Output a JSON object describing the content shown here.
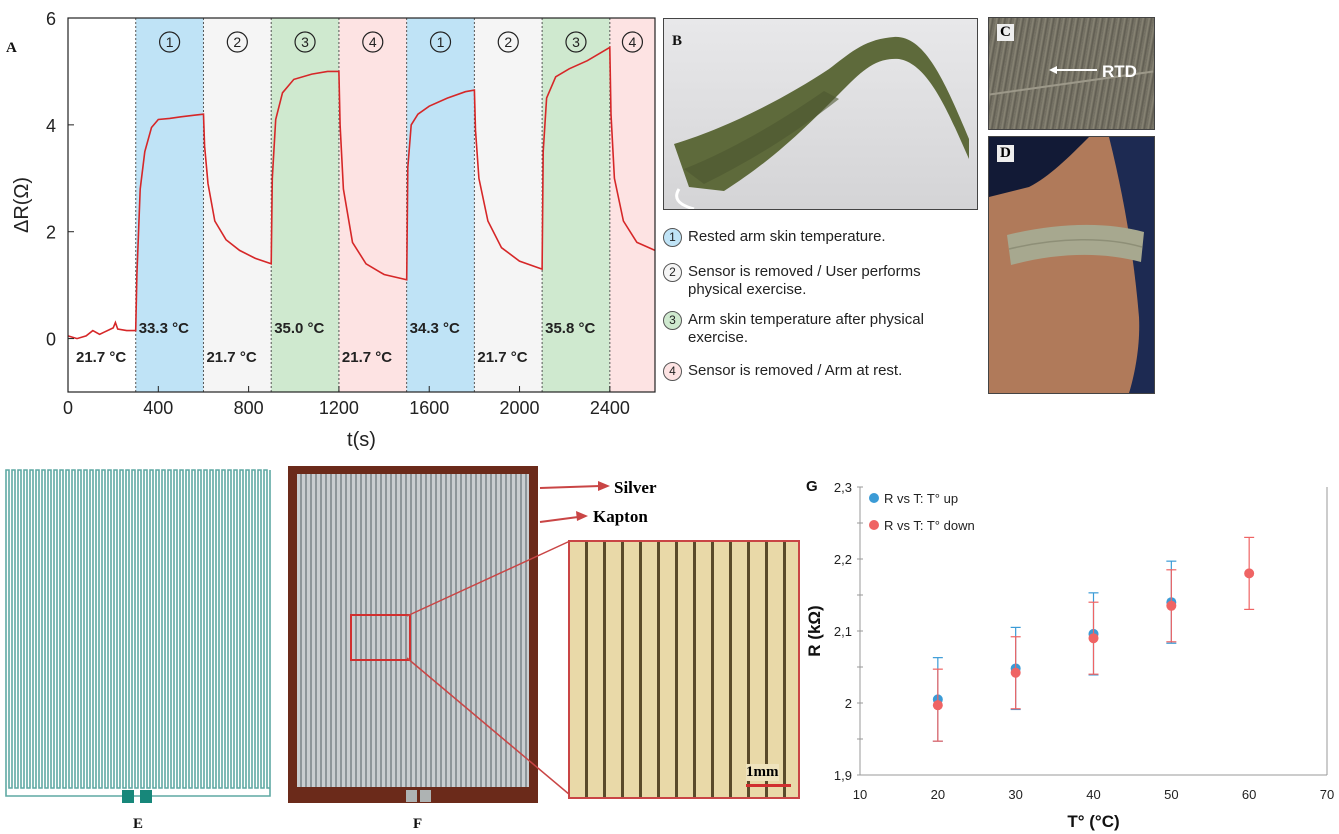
{
  "panels": {
    "a": "A",
    "b": "B",
    "c": "C",
    "d": "D",
    "e": "E",
    "f": "F",
    "g": "G"
  },
  "chart_data": [
    {
      "type": "line",
      "panel": "A",
      "xlabel": "t(s)",
      "ylabel": "ΔR(Ω)",
      "xlim": [
        0,
        2600
      ],
      "ylim": [
        -1,
        6
      ],
      "xticks": [
        "0",
        "400",
        "800",
        "1200",
        "1600",
        "2000",
        "2400"
      ],
      "yticks": [
        "0",
        "2",
        "4",
        "6"
      ],
      "phases": [
        {
          "label": "1",
          "start": 300,
          "end": 600,
          "color": "#bfe3f6",
          "temp": "33.3 °C"
        },
        {
          "label": "2",
          "start": 600,
          "end": 900,
          "color": "#f5f5f5",
          "temp": "21.7 °C"
        },
        {
          "label": "3",
          "start": 900,
          "end": 1200,
          "color": "#cfe9cf",
          "temp": "35.0 °C"
        },
        {
          "label": "4",
          "start": 1200,
          "end": 1500,
          "color": "#fde3e3",
          "temp": "21.7 °C"
        },
        {
          "label": "1",
          "start": 1500,
          "end": 1800,
          "color": "#bfe3f6",
          "temp": "34.3 °C"
        },
        {
          "label": "2",
          "start": 1800,
          "end": 2100,
          "color": "#f5f5f5",
          "temp": "21.7 °C"
        },
        {
          "label": "3",
          "start": 2100,
          "end": 2400,
          "color": "#cfe9cf",
          "temp": "35.8 °C"
        },
        {
          "label": "4",
          "start": 2400,
          "end": 2600,
          "color": "#fde3e3",
          "temp": ""
        }
      ],
      "initial_temp": "21.7 °C",
      "series": [
        {
          "color": "#d62728",
          "x": [
            0,
            40,
            80,
            110,
            140,
            160,
            200,
            210,
            220,
            260,
            300,
            305,
            320,
            340,
            370,
            400,
            450,
            500,
            560,
            600,
            605,
            620,
            650,
            700,
            760,
            830,
            900,
            905,
            920,
            950,
            1000,
            1080,
            1150,
            1200,
            1205,
            1220,
            1260,
            1320,
            1400,
            1500,
            1505,
            1520,
            1550,
            1600,
            1680,
            1760,
            1800,
            1805,
            1820,
            1860,
            1920,
            2000,
            2100,
            2105,
            2120,
            2160,
            2220,
            2300,
            2380,
            2400,
            2405,
            2420,
            2460,
            2520,
            2600
          ],
          "y": [
            0.05,
            0.0,
            0.05,
            0.15,
            0.08,
            0.12,
            0.2,
            0.3,
            0.18,
            0.15,
            0.15,
            1.2,
            2.8,
            3.5,
            3.95,
            4.1,
            4.12,
            4.15,
            4.18,
            4.2,
            3.6,
            2.9,
            2.2,
            1.85,
            1.65,
            1.5,
            1.4,
            3.0,
            4.1,
            4.6,
            4.85,
            4.95,
            5.0,
            5.0,
            4.0,
            2.8,
            1.8,
            1.4,
            1.2,
            1.1,
            3.2,
            4.0,
            4.2,
            4.35,
            4.5,
            4.62,
            4.65,
            3.9,
            3.0,
            2.2,
            1.7,
            1.45,
            1.3,
            3.5,
            4.5,
            4.9,
            5.05,
            5.2,
            5.4,
            5.45,
            4.2,
            3.0,
            2.2,
            1.8,
            1.65
          ]
        }
      ]
    },
    {
      "type": "scatter",
      "panel": "G",
      "xlabel": "T° (°C)",
      "ylabel": "R (kΩ)",
      "xlim": [
        10,
        70
      ],
      "ylim": [
        1.9,
        2.3
      ],
      "xticks": [
        "10",
        "20",
        "30",
        "40",
        "50",
        "60",
        "70"
      ],
      "yticks": [
        "1,9",
        "2",
        "2,1",
        "2,2",
        "2,3"
      ],
      "series": [
        {
          "name": "R vs T: T° up",
          "color": "#3b9bd6",
          "x": [
            20,
            30,
            40,
            50
          ],
          "y": [
            2.005,
            2.048,
            2.096,
            2.14
          ],
          "err": [
            0.058,
            0.057,
            0.057,
            0.057
          ]
        },
        {
          "name": "R vs T: T° down",
          "color": "#ef6464",
          "x": [
            20,
            30,
            40,
            50,
            60
          ],
          "y": [
            1.997,
            2.042,
            2.09,
            2.135,
            2.18
          ],
          "err": [
            0.05,
            0.05,
            0.05,
            0.05,
            0.05
          ]
        }
      ]
    }
  ],
  "legend_b": [
    {
      "num": "1",
      "text": "Rested arm skin temperature."
    },
    {
      "num": "2",
      "text": "Sensor is removed / User performs physical exercise."
    },
    {
      "num": "3",
      "text": "Arm skin temperature after physical exercise."
    },
    {
      "num": "4",
      "text": "Sensor is removed / Arm at rest."
    }
  ],
  "photo_c_label": "RTD",
  "panel_f": {
    "silver_label": "Silver",
    "kapton_label": "Kapton",
    "scale_bar": "1mm"
  }
}
